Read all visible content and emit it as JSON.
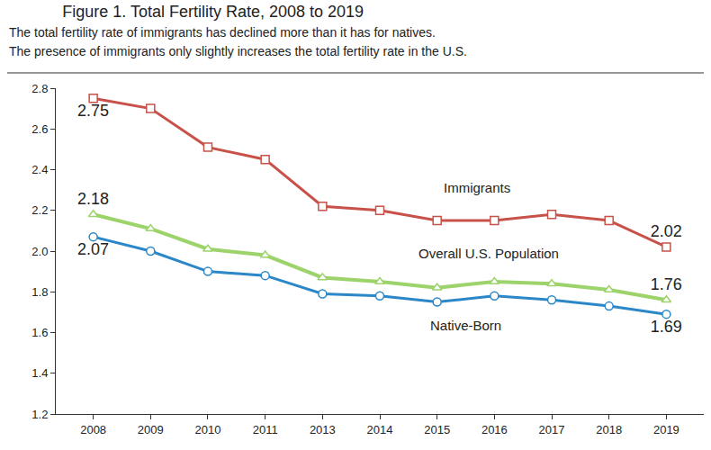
{
  "chart_data": {
    "type": "line",
    "title": "Figure 1. Total Fertility Rate, 2008 to 2019",
    "subtitle": [
      "The total fertility rate of immigrants has declined more than it has for natives.",
      "The presence of immigrants only slightly increases the total fertility rate in the U.S."
    ],
    "categories": [
      "2008",
      "2009",
      "2010",
      "2011",
      "2013",
      "2014",
      "2015",
      "2016",
      "2017",
      "2018",
      "2019"
    ],
    "series": [
      {
        "name": "Immigrants",
        "color": "#c8524a",
        "marker": "square",
        "values": [
          2.75,
          2.7,
          2.51,
          2.45,
          2.22,
          2.2,
          2.15,
          2.15,
          2.18,
          2.15,
          2.02
        ],
        "value_labels": [
          "2.75",
          null,
          null,
          null,
          null,
          null,
          null,
          null,
          null,
          null,
          "2.02"
        ]
      },
      {
        "name": "Overall U.S. Population",
        "color": "#9cd36a",
        "marker": "triangle",
        "values": [
          2.18,
          2.11,
          2.01,
          1.98,
          1.87,
          1.85,
          1.82,
          1.85,
          1.84,
          1.81,
          1.76
        ],
        "value_labels": [
          "2.18",
          null,
          null,
          null,
          null,
          null,
          null,
          null,
          null,
          null,
          "1.76"
        ]
      },
      {
        "name": "Native-Born",
        "color": "#2b87c8",
        "marker": "circle",
        "values": [
          2.07,
          2.0,
          1.9,
          1.88,
          1.79,
          1.78,
          1.75,
          1.78,
          1.76,
          1.73,
          1.69
        ],
        "value_labels": [
          "2.07",
          null,
          null,
          null,
          null,
          null,
          null,
          null,
          null,
          null,
          "1.69"
        ]
      }
    ],
    "ylim": [
      1.2,
      2.8
    ],
    "yticks": [
      1.2,
      1.4,
      1.6,
      1.8,
      {
        "value": 2,
        "label": "2.0"
      },
      2.2,
      2.4,
      2.6,
      2.8
    ],
    "grid": false
  }
}
